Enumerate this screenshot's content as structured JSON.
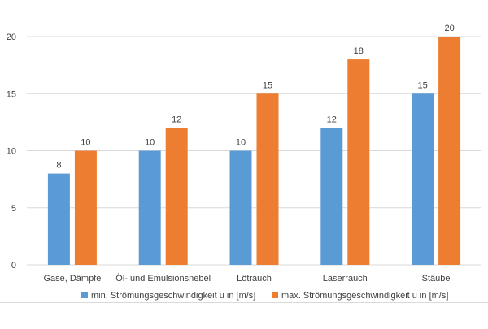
{
  "chart_data": {
    "type": "bar",
    "categories": [
      "Gase, Dämpfe",
      "Öl- und Emulsionsnebel",
      "Lötrauch",
      "Laserrauch",
      "Stäube"
    ],
    "series": [
      {
        "name": "min. Strömungsgeschwindigkeit u in [m/s]",
        "values": [
          8,
          10,
          10,
          12,
          15
        ],
        "color": "#5b9bd5"
      },
      {
        "name": "max. Strömungsgeschwindigkeit u in [m/s]",
        "values": [
          10,
          12,
          15,
          18,
          20
        ],
        "color": "#ed7d31"
      }
    ],
    "yticks": [
      "0",
      "5",
      "10",
      "15",
      "20"
    ],
    "ylim": [
      0,
      20
    ],
    "grid": true,
    "legend_position": "bottom",
    "gridline_color": "#d9d9d9"
  }
}
